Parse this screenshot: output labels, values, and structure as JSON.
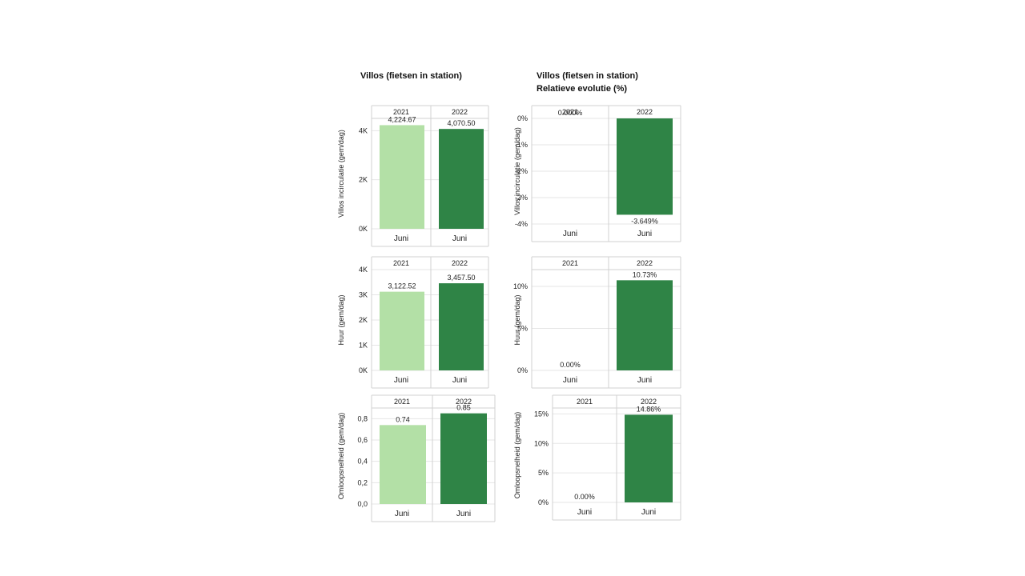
{
  "titles": {
    "left": "Villos (fietsen in station)",
    "right_line1": "Villos (fietsen in station)",
    "right_line2": "Relatieve evolutie (%)"
  },
  "colors": {
    "y2021": "#b3e0a6",
    "y2022": "#2f8446",
    "grid": "#e6e6e6",
    "frame": "#d0d0d0"
  },
  "chart_data": [
    {
      "type": "bar",
      "ylabel": "Villos incirculatie (gem/dag)",
      "columns": [
        "2021",
        "2022"
      ],
      "categories": [
        "Juni",
        "Juni"
      ],
      "values": [
        4224.67,
        4070.5
      ],
      "data_labels": [
        "4,224.67",
        "4,070.50"
      ],
      "yticks": [
        0,
        2000,
        4000
      ],
      "ytick_labels": [
        "0K",
        "2K",
        "4K"
      ],
      "ylim": [
        0,
        4500
      ]
    },
    {
      "type": "bar",
      "ylabel": "Villos incirculatie (gem/dag)",
      "columns": [
        "2021",
        "2022"
      ],
      "categories": [
        "Juni",
        "Juni"
      ],
      "values": [
        0.0,
        -3.649
      ],
      "data_labels": [
        "0.000%",
        "-3.649%"
      ],
      "yticks": [
        0,
        -1,
        -2,
        -3,
        -4
      ],
      "ytick_labels": [
        "0%",
        "-1%",
        "-2%",
        "-3%",
        "-4%"
      ],
      "ylim": [
        -4,
        0
      ]
    },
    {
      "type": "bar",
      "ylabel": "Huur (gem/dag)",
      "columns": [
        "2021",
        "2022"
      ],
      "categories": [
        "Juni",
        "Juni"
      ],
      "values": [
        3122.52,
        3457.5
      ],
      "data_labels": [
        "3,122.52",
        "3,457.50"
      ],
      "yticks": [
        0,
        1000,
        2000,
        3000,
        4000
      ],
      "ytick_labels": [
        "0K",
        "1K",
        "2K",
        "3K",
        "4K"
      ],
      "ylim": [
        0,
        4000
      ]
    },
    {
      "type": "bar",
      "ylabel": "Huur (gem/dag)",
      "columns": [
        "2021",
        "2022"
      ],
      "categories": [
        "Juni",
        "Juni"
      ],
      "values": [
        0.0,
        10.73
      ],
      "data_labels": [
        "0.00%",
        "10.73%"
      ],
      "yticks": [
        0,
        5,
        10
      ],
      "ytick_labels": [
        "0%",
        "5%",
        "10%"
      ],
      "ylim": [
        0,
        12
      ]
    },
    {
      "type": "bar",
      "ylabel": "Omloopsnelheid (gem/dag)",
      "columns": [
        "2021",
        "2022"
      ],
      "categories": [
        "Juni",
        "Juni"
      ],
      "values": [
        0.74,
        0.85
      ],
      "data_labels": [
        "0.74",
        "0.85"
      ],
      "yticks": [
        0,
        0.2,
        0.4,
        0.6,
        0.8
      ],
      "ytick_labels": [
        "0,0",
        "0,2",
        "0,4",
        "0,6",
        "0,8"
      ],
      "ylim": [
        0,
        0.9
      ]
    },
    {
      "type": "bar",
      "ylabel": "Omloopsnelheid (gem/dag)",
      "columns": [
        "2021",
        "2022"
      ],
      "categories": [
        "Juni",
        "Juni"
      ],
      "values": [
        0.0,
        14.86
      ],
      "data_labels": [
        "0.00%",
        "14.86%"
      ],
      "yticks": [
        0,
        5,
        10,
        15
      ],
      "ytick_labels": [
        "0%",
        "5%",
        "10%",
        "15%"
      ],
      "ylim": [
        0,
        16
      ]
    }
  ]
}
